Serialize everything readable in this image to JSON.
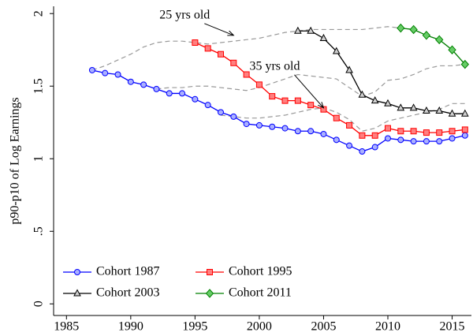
{
  "chart_data": {
    "type": "line",
    "y_label": "p90-p10 of Log Earnings",
    "x": [
      1987,
      1988,
      1989,
      1990,
      1991,
      1992,
      1993,
      1994,
      1995,
      1996,
      1997,
      1998,
      1999,
      2000,
      2001,
      2002,
      2003,
      2004,
      2005,
      2006,
      2007,
      2008,
      2009,
      2010,
      2011,
      2012,
      2013,
      2014,
      2015,
      2016
    ],
    "series": [
      {
        "name": "Cohort 1987",
        "color": "#0000ff",
        "marker": "circle",
        "marker_fill": "#aab0ff",
        "values": [
          1.61,
          1.59,
          1.58,
          1.53,
          1.51,
          1.48,
          1.45,
          1.45,
          1.41,
          1.37,
          1.32,
          1.29,
          1.24,
          1.23,
          1.22,
          1.21,
          1.19,
          1.19,
          1.17,
          1.13,
          1.09,
          1.05,
          1.08,
          1.14,
          1.13,
          1.12,
          1.12,
          1.12,
          1.14,
          1.16
        ]
      },
      {
        "name": "Cohort 1995",
        "color": "#ff0000",
        "marker": "square",
        "marker_fill": "#ff7f7f",
        "values": [
          null,
          null,
          null,
          null,
          null,
          null,
          null,
          null,
          1.8,
          1.76,
          1.72,
          1.66,
          1.58,
          1.51,
          1.43,
          1.4,
          1.4,
          1.37,
          1.34,
          1.28,
          1.23,
          1.16,
          1.16,
          1.21,
          1.19,
          1.19,
          1.18,
          1.18,
          1.19,
          1.2
        ]
      },
      {
        "name": "Cohort 2003",
        "color": "#000000",
        "marker": "triangle",
        "marker_fill": "#d0d0d0",
        "values": [
          null,
          null,
          null,
          null,
          null,
          null,
          null,
          null,
          null,
          null,
          null,
          null,
          null,
          null,
          null,
          null,
          1.88,
          1.88,
          1.83,
          1.74,
          1.61,
          1.44,
          1.4,
          1.38,
          1.35,
          1.35,
          1.33,
          1.33,
          1.31,
          1.31
        ]
      },
      {
        "name": "Cohort 2011",
        "color": "#008000",
        "marker": "diamond",
        "marker_fill": "#66cc66",
        "values": [
          null,
          null,
          null,
          null,
          null,
          null,
          null,
          null,
          null,
          null,
          null,
          null,
          null,
          null,
          null,
          null,
          null,
          null,
          null,
          null,
          null,
          null,
          null,
          null,
          1.9,
          1.89,
          1.85,
          1.82,
          1.75,
          1.65
        ]
      }
    ],
    "age_lines": [
      {
        "color": "#999999",
        "values": [
          1.61,
          1.64,
          1.68,
          1.72,
          1.77,
          1.8,
          1.81,
          1.81,
          1.8,
          1.79,
          1.8,
          1.81,
          1.82,
          1.83,
          1.85,
          1.87,
          1.88,
          1.89,
          1.89,
          1.89,
          1.89,
          1.89,
          1.9,
          1.91,
          1.9,
          1.89,
          1.85,
          1.82,
          1.75,
          1.65
        ]
      },
      {
        "color": "#999999",
        "values": [
          null,
          null,
          null,
          null,
          null,
          1.48,
          1.49,
          1.49,
          1.5,
          1.5,
          1.49,
          1.48,
          1.47,
          1.49,
          1.52,
          1.55,
          1.58,
          1.57,
          1.56,
          1.55,
          1.49,
          1.43,
          1.46,
          1.54,
          1.55,
          1.58,
          1.62,
          1.64,
          1.64,
          1.65
        ]
      },
      {
        "color": "#999999",
        "values": [
          null,
          null,
          null,
          null,
          null,
          null,
          null,
          null,
          null,
          null,
          1.3,
          1.29,
          1.28,
          1.28,
          1.29,
          1.3,
          1.32,
          1.34,
          1.35,
          1.32,
          1.27,
          1.19,
          1.21,
          1.26,
          1.28,
          1.3,
          1.32,
          1.34,
          1.38,
          1.38
        ]
      }
    ],
    "annotations": [
      {
        "text": "25 yrs old",
        "x": 1998,
        "y": 1.85
      },
      {
        "text": "35 yrs old",
        "x": 2005,
        "y": 1.35
      }
    ],
    "xlim": [
      1984,
      2016.5
    ],
    "xticks": [
      1985,
      1990,
      1995,
      2000,
      2005,
      2010,
      2015
    ],
    "ylim": [
      -0.08,
      2.05
    ],
    "yticks": [
      0,
      {
        "value": 0.5,
        "label": ".5"
      },
      1,
      1.5,
      2
    ]
  }
}
